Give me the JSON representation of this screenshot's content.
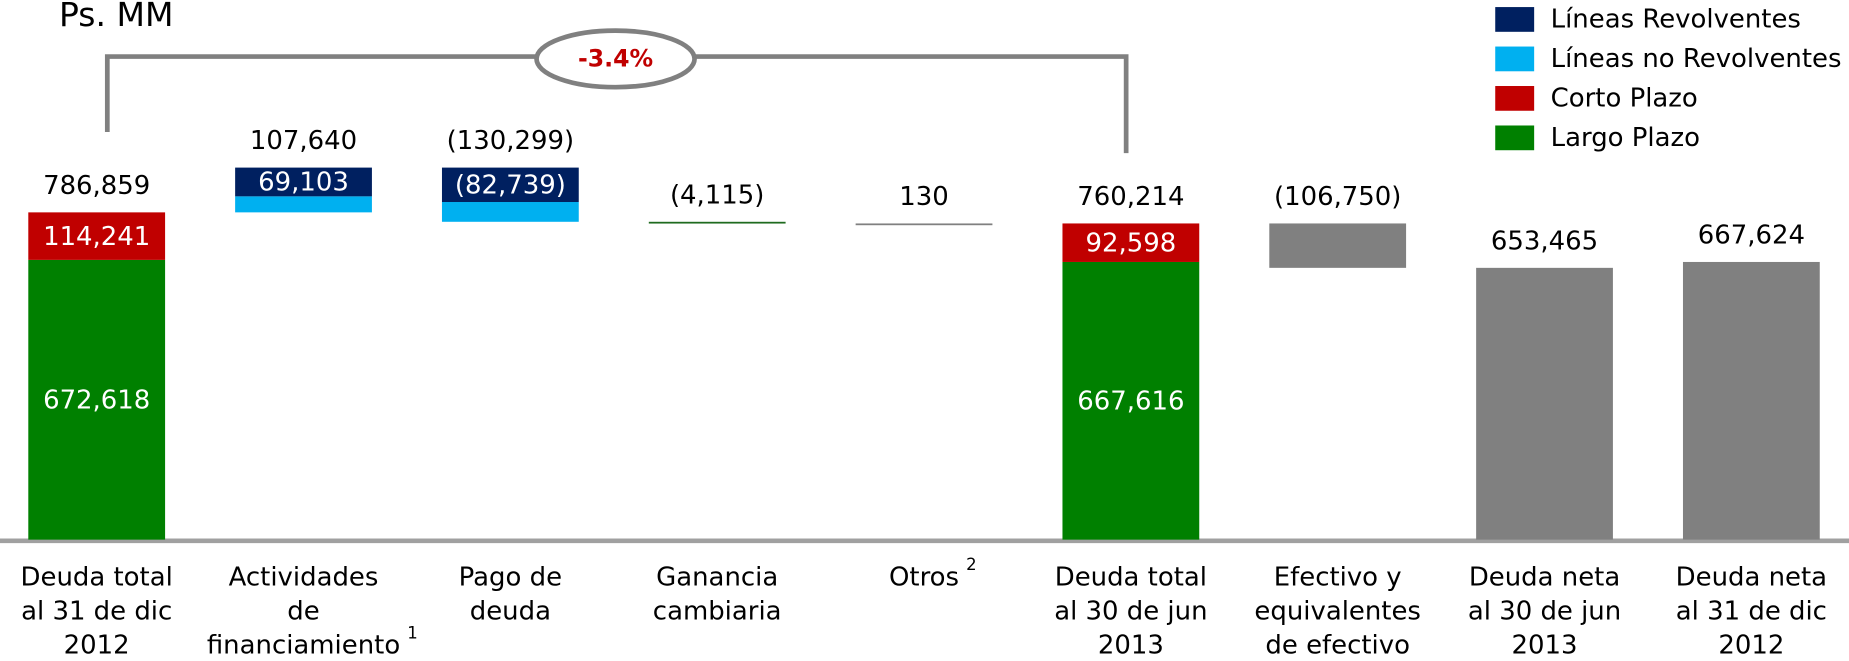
{
  "chart_data": {
    "type": "waterfall",
    "title": "Ps. MM",
    "annotation": "-3.4%",
    "categories": [
      "Deuda total\nal 31 de dic\n2012",
      "Actividades\nde\nfinanciamiento",
      "Pago de\ndeuda",
      "Ganancia\ncambiaria",
      "Otros",
      "Deuda total\nal 30 de jun\n2013",
      "Efectivo y\nequivalentes\nde efectivo",
      "Deuda neta\nal 30 de jun\n2013",
      "Deuda neta\nal 31 de dic\n2012"
    ],
    "category_notes": [
      null,
      "1",
      null,
      null,
      "2",
      null,
      null,
      null,
      null
    ],
    "measures": [
      "absolute",
      "relative",
      "relative",
      "relative",
      "relative",
      "absolute",
      "relative",
      "absolute",
      "absolute"
    ],
    "values": [
      786859,
      107640,
      -130299,
      -4115,
      130,
      760214,
      -106750,
      653465,
      667624
    ],
    "value_labels": [
      "786,859",
      "107,640",
      "(130,299)",
      "(4,115)",
      "130",
      "760,214",
      "(106,750)",
      "653,465",
      "667,624"
    ],
    "bar_colors": [
      "#808080",
      "#808080",
      "#808080",
      "#1f6b1f",
      "#808080",
      "#808080",
      "#808080",
      "#808080",
      "#808080"
    ],
    "series": [
      {
        "name": "Largo Plazo",
        "color": "#008000",
        "values": [
          672618,
          null,
          null,
          null,
          null,
          667616,
          null,
          null,
          null
        ],
        "value_labels": [
          "672,618",
          null,
          null,
          null,
          null,
          "667,616",
          null,
          null,
          null
        ]
      },
      {
        "name": "Corto Plazo",
        "color": "#c00000",
        "values": [
          114241,
          null,
          null,
          null,
          null,
          92598,
          null,
          null,
          null
        ],
        "value_labels": [
          "114,241",
          null,
          null,
          null,
          null,
          "92,598",
          null,
          null,
          null
        ]
      },
      {
        "name": "Líneas no Revolventes",
        "color": "#00b0f0",
        "values": [
          null,
          38537,
          -47560,
          null,
          null,
          null,
          null,
          null,
          null
        ],
        "value_labels": [
          null,
          null,
          null,
          null,
          null,
          null,
          null,
          null,
          null
        ]
      },
      {
        "name": "Líneas Revolventes",
        "color": "#002060",
        "values": [
          null,
          69103,
          -82739,
          null,
          null,
          null,
          null,
          null,
          null
        ],
        "value_labels": [
          null,
          "69,103",
          "(82,739)",
          null,
          null,
          null,
          null,
          null,
          null
        ]
      }
    ],
    "ylim": [
      0,
      1000000
    ]
  }
}
